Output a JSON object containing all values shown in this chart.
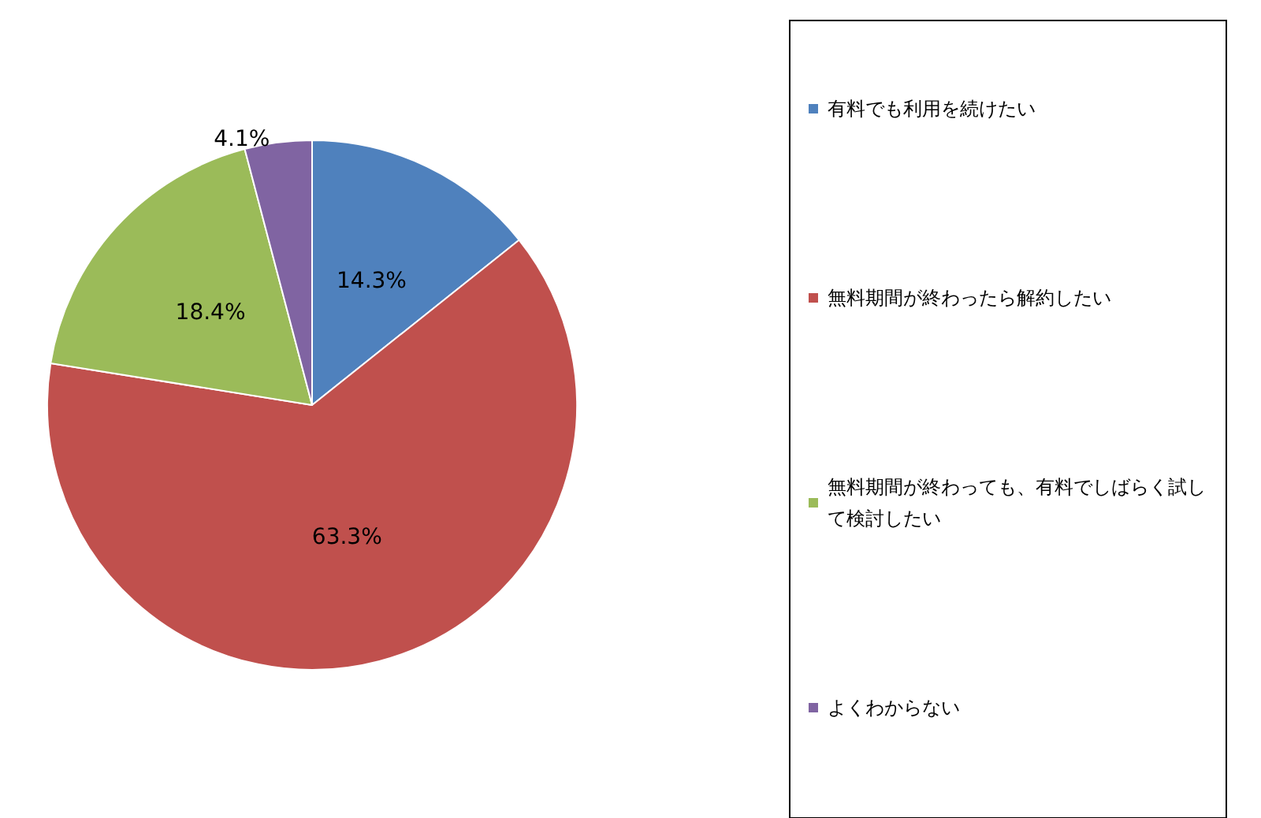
{
  "chart_data": {
    "type": "pie",
    "categories": [
      "有料でも利用を続けたい",
      "無料期間が終わったら解約したい",
      "無料期間が終わっても、有料でしばらく試して検討したい",
      "よくわからない"
    ],
    "values": [
      14.3,
      63.3,
      18.4,
      4.1
    ],
    "colors": [
      "#4f81bd",
      "#c0504d",
      "#9bbb59",
      "#8064a2"
    ],
    "value_labels": [
      "14.3%",
      "63.3%",
      "18.4%",
      "4.1%"
    ],
    "legend": "right"
  }
}
